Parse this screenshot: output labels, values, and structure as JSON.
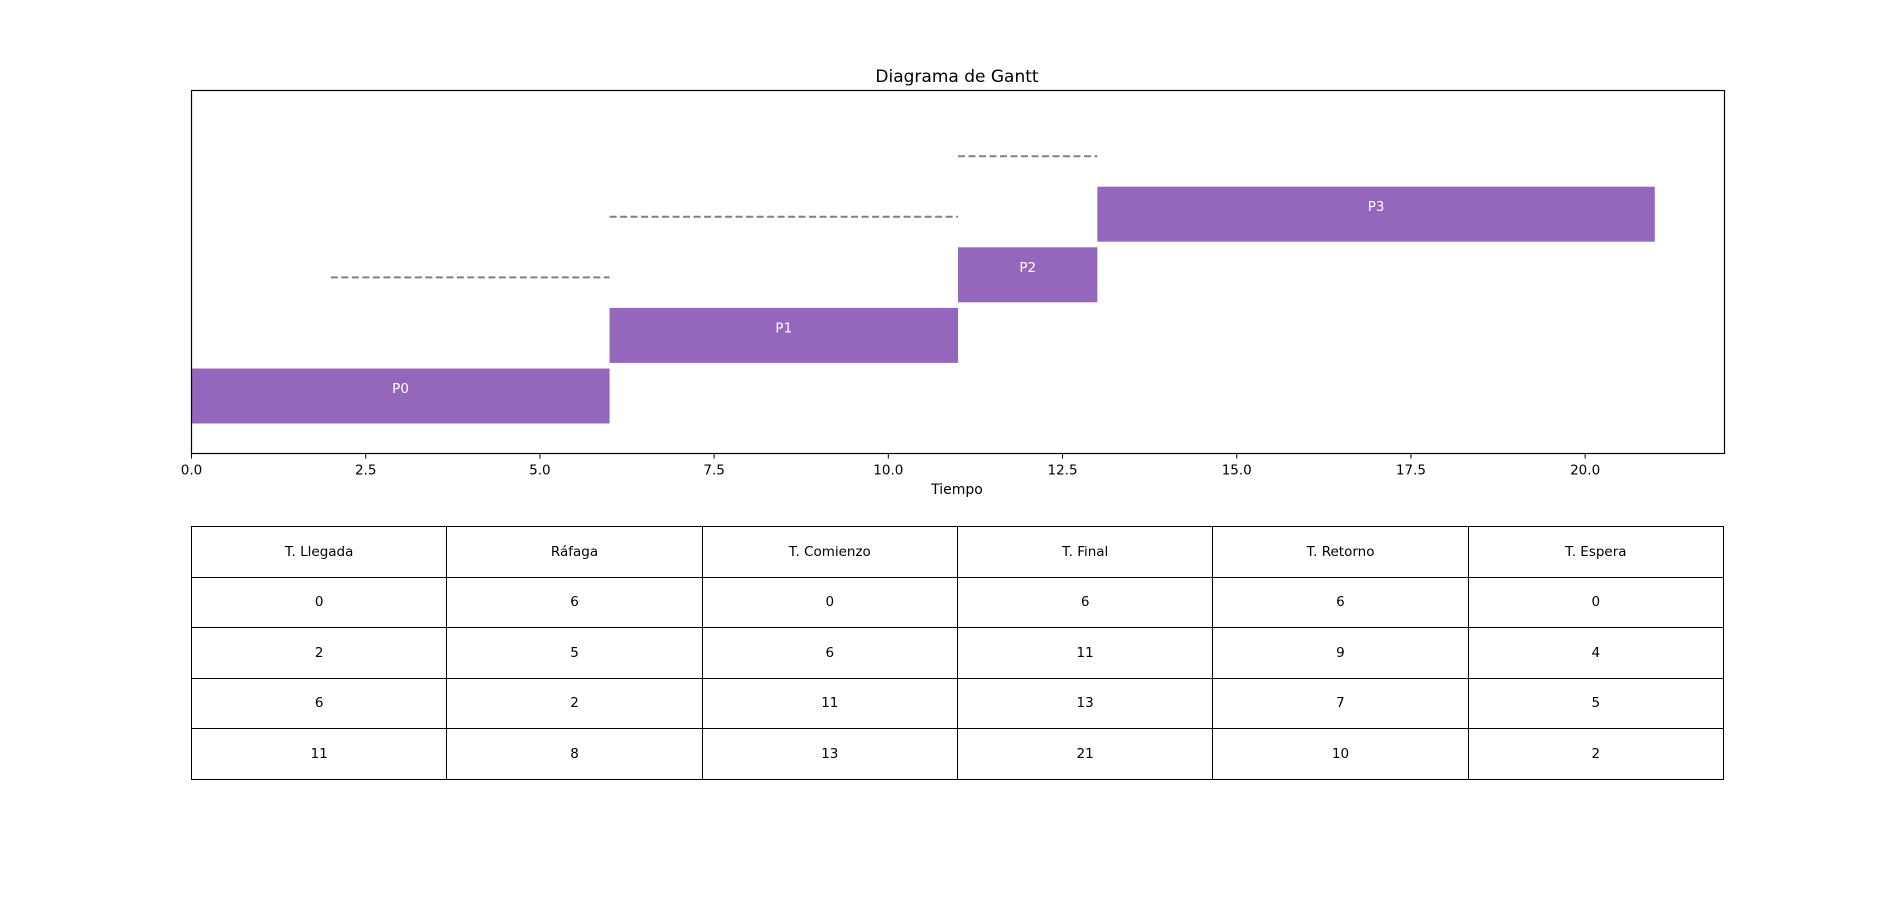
{
  "chart_data": {
    "type": "gantt",
    "title": "Diagrama de Gantt",
    "xlabel": "Tiempo",
    "ylabel": "",
    "xlim": [
      0,
      22
    ],
    "xticks": [
      0.0,
      2.5,
      5.0,
      7.5,
      10.0,
      12.5,
      15.0,
      17.5,
      20.0
    ],
    "xtick_labels": [
      "0.0",
      "2.5",
      "5.0",
      "7.5",
      "10.0",
      "12.5",
      "15.0",
      "17.5",
      "20.0"
    ],
    "grid": false,
    "bar_color": "#9467bd",
    "wait_line_color": "#808080",
    "processes": [
      {
        "name": "P0",
        "arrival": 0,
        "start": 0,
        "end": 6
      },
      {
        "name": "P1",
        "arrival": 2,
        "start": 6,
        "end": 11
      },
      {
        "name": "P2",
        "arrival": 6,
        "start": 11,
        "end": 13
      },
      {
        "name": "P3",
        "arrival": 11,
        "start": 13,
        "end": 21
      }
    ]
  },
  "table": {
    "headers": [
      "T. Llegada",
      "Ráfaga",
      "T. Comienzo",
      "T. Final",
      "T. Retorno",
      "T. Espera"
    ],
    "rows": [
      [
        "0",
        "6",
        "0",
        "6",
        "6",
        "0"
      ],
      [
        "2",
        "5",
        "6",
        "11",
        "9",
        "4"
      ],
      [
        "6",
        "2",
        "11",
        "13",
        "7",
        "5"
      ],
      [
        "11",
        "8",
        "13",
        "21",
        "10",
        "2"
      ]
    ]
  }
}
